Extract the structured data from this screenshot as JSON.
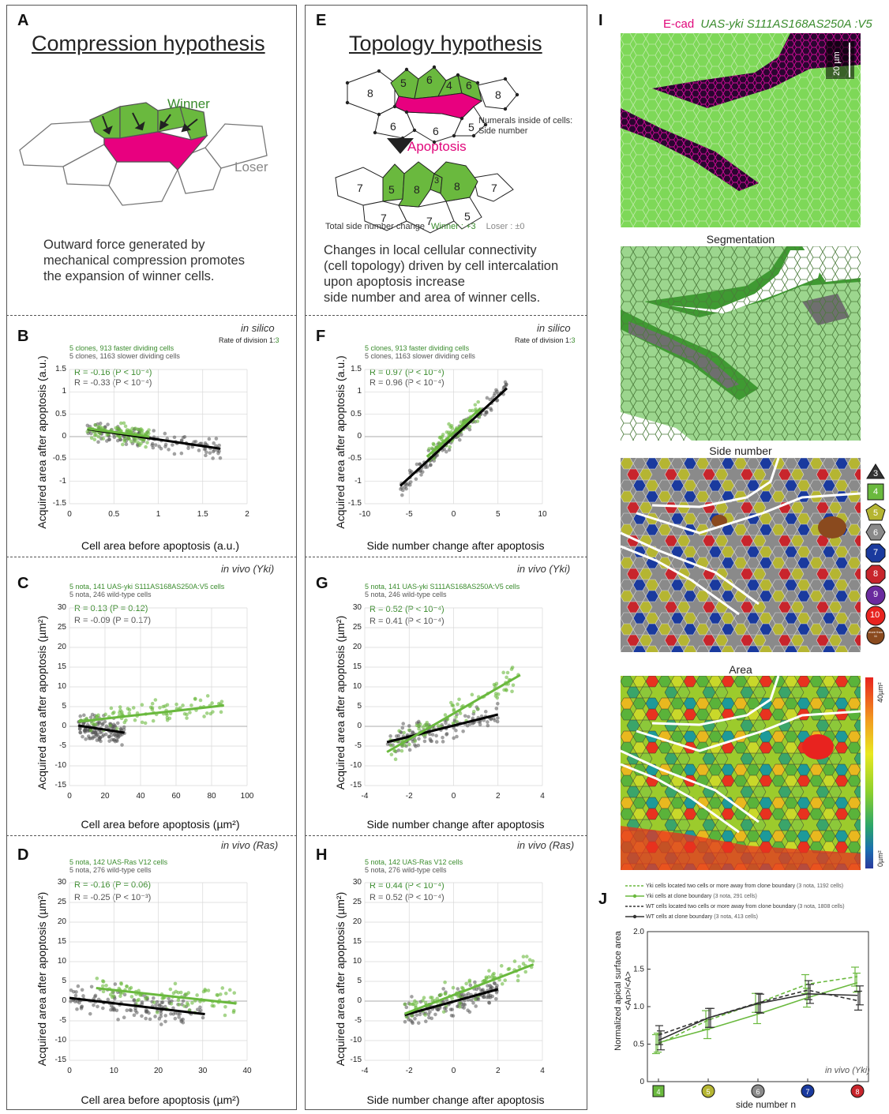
{
  "letters": [
    "A",
    "B",
    "C",
    "D",
    "E",
    "F",
    "G",
    "H",
    "I",
    "J"
  ],
  "panelA": {
    "title": "Compression hypothesis",
    "winner": "Winner",
    "loser": "Loser",
    "caption": [
      "Outward force generated by",
      "mechanical compression promotes",
      "the expansion of winner cells."
    ]
  },
  "panelE": {
    "title": "Topology hypothesis",
    "top_sides": [
      "5",
      "6",
      "4",
      "6"
    ],
    "top_others": [
      "8",
      "8",
      "6",
      "6",
      "5"
    ],
    "numerals_note": [
      "Numerals inside of cells:",
      "Side number"
    ],
    "apoptosis": "Apoptosis",
    "bottom_sides": [
      "5",
      "8",
      "3",
      "8"
    ],
    "bottom_others": [
      "7",
      "7",
      "7",
      "7",
      "5"
    ],
    "total_label": "Total side number change",
    "winner_change": "Winner : +3",
    "loser_change": "Loser : ±0",
    "caption": [
      "Changes in local cellular connectivity",
      "(cell topology) driven by cell intercalation",
      "upon apoptosis increase",
      "side number and area of winner cells."
    ]
  },
  "colors": {
    "winner": "#6ab93e",
    "dead": "#e8007f",
    "loser_line": "#777777",
    "grey_dot": "#555555",
    "black_line": "#000000"
  },
  "scatter": {
    "B": {
      "context": "in silico",
      "rate": "Rate of division 1:",
      "rate_ratio": "3",
      "legend1": "5 clones, 913 faster dividing cells",
      "legend2": "5 clones, 1163 slower dividing cells",
      "r1": "R = -0.16 (P < 10⁻⁴)",
      "r2": "R = -0.33 (P < 10⁻⁴)",
      "ylabel": "Acquired area after apoptosis (a.u.)",
      "xlabel": "Cell area before apoptosis (a.u.)",
      "xticks": [
        "0",
        "0.5",
        "1",
        "1.5",
        "2"
      ],
      "yticks": [
        "1.5",
        "1",
        "0.5",
        "0",
        "-0.5",
        "-1",
        "-1.5"
      ]
    },
    "C": {
      "context": "in vivo (Yki)",
      "legend1": "5 nota, 141 UAS-yki S111AS168AS250A:V5 cells",
      "legend2": "5 nota, 246 wild-type cells",
      "r1": "R = 0.13 (P = 0.12)",
      "r2": "R = -0.09 (P = 0.17)",
      "ylabel": "Acquired area after apoptosis (µm²)",
      "xlabel": "Cell area before apoptosis (µm²)",
      "xticks": [
        "0",
        "20",
        "40",
        "60",
        "80",
        "100"
      ],
      "yticks": [
        "30",
        "25",
        "20",
        "15",
        "10",
        "5",
        "0",
        "-5",
        "-10",
        "-15"
      ]
    },
    "D": {
      "context": "in vivo (Ras)",
      "legend1": "5 nota, 142 UAS-Ras V12 cells",
      "legend2": "5 nota, 276 wild-type cells",
      "r1": "R = -0.16 (P = 0.06)",
      "r2": "R = -0.25 (P < 10⁻³)",
      "ylabel": "Acquired area after apoptosis (µm²)",
      "xlabel": "Cell area before apoptosis (µm²)",
      "xticks": [
        "0",
        "10",
        "20",
        "30",
        "40"
      ],
      "yticks": [
        "30",
        "25",
        "20",
        "15",
        "10",
        "5",
        "0",
        "-5",
        "-10",
        "-15"
      ]
    },
    "F": {
      "context": "in silico",
      "rate": "Rate of division 1:",
      "rate_ratio": "3",
      "legend1": "5 clones, 913 faster dividing cells",
      "legend2": "5 clones, 1163 slower dividing cells",
      "r1": "R = 0.97 (P < 10⁻⁴)",
      "r2": "R = 0.96 (P < 10⁻⁴)",
      "ylabel": "Acquired area after apoptosis (a.u.)",
      "xlabel": "Side number change after apoptosis",
      "xticks": [
        "-10",
        "-5",
        "0",
        "5",
        "10"
      ],
      "yticks": [
        "1.5",
        "1",
        "0.5",
        "0",
        "-0.5",
        "-1",
        "-1.5"
      ]
    },
    "G": {
      "context": "in vivo (Yki)",
      "legend1": "5 nota, 141 UAS-yki S111AS168AS250A:V5 cells",
      "legend2": "5 nota, 246 wild-type cells",
      "r1": "R = 0.52 (P < 10⁻⁴)",
      "r2": "R = 0.41 (P < 10⁻⁴)",
      "ylabel": "Acquired area after apoptosis (µm²)",
      "xlabel": "Side number change after apoptosis",
      "xticks": [
        "-4",
        "-2",
        "0",
        "2",
        "4"
      ],
      "yticks": [
        "30",
        "25",
        "20",
        "15",
        "10",
        "5",
        "0",
        "-5",
        "-10",
        "-15"
      ]
    },
    "H": {
      "context": "in vivo (Ras)",
      "legend1": "5 nota, 142 UAS-Ras V12 cells",
      "legend2": "5 nota, 276 wild-type cells",
      "r1": "R = 0.44 (P < 10⁻⁴)",
      "r2": "R = 0.52 (P < 10⁻⁴)",
      "ylabel": "Acquired area after apoptosis (µm²)",
      "xlabel": "Side number change after apoptosis",
      "xticks": [
        "-4",
        "-2",
        "0",
        "2",
        "4"
      ],
      "yticks": [
        "30",
        "25",
        "20",
        "15",
        "10",
        "5",
        "0",
        "-5",
        "-10",
        "-15"
      ]
    }
  },
  "panelI": {
    "title_ecad": "E-cad",
    "title_uas": "UAS-yki S111AS168AS250A :V5",
    "scale": "20 µm",
    "segmentation": "Segmentation",
    "side_number": "Side number",
    "area": "Area",
    "legend": [
      "3",
      "4",
      "5",
      "6",
      "7",
      "8",
      "9",
      "10",
      "more than 11"
    ],
    "colorbar_max": "40µm²",
    "colorbar_min": "0µm²"
  },
  "panelJ": {
    "legend": [
      {
        "text": "Yki cells located two cells or more away from clone boundary",
        "detail": "(3 nota, 1192 cells)"
      },
      {
        "text": "Yki cells at clone boundary",
        "detail": "(3 nota, 291 cells)"
      },
      {
        "text": "WT cells located two cells or more away from clone boundary",
        "detail": "(3 nota, 1808 cells)"
      },
      {
        "text": "WT cells at clone boundary",
        "detail": "(3 nota, 413 cells)"
      }
    ],
    "ylabel": "Normalized apical surface area",
    "ylabel2": "<An>/<A>",
    "xlabel": "side number n",
    "context": "in vivo (Yki)",
    "yticks": [
      "2.0",
      "1.5",
      "1.0",
      "0.5",
      "0"
    ],
    "xticks": [
      "4",
      "5",
      "6",
      "7",
      "8"
    ]
  },
  "chart_data": [
    {
      "type": "scatter",
      "panel": "B",
      "xlim": [
        0,
        2
      ],
      "ylim": [
        -1.5,
        1.5
      ],
      "fits": [
        {
          "series": "faster",
          "x": [
            0.2,
            0.9
          ],
          "y": [
            0.18,
            0.0
          ]
        },
        {
          "series": "slower",
          "x": [
            0.2,
            1.7
          ],
          "y": [
            0.17,
            -0.27
          ]
        }
      ]
    },
    {
      "type": "scatter",
      "panel": "C",
      "xlim": [
        0,
        100
      ],
      "ylim": [
        -15,
        30
      ],
      "fits": [
        {
          "series": "yki",
          "x": [
            5,
            87
          ],
          "y": [
            1.2,
            5.3
          ]
        },
        {
          "series": "wt",
          "x": [
            5,
            31
          ],
          "y": [
            0.2,
            -1.6
          ]
        }
      ]
    },
    {
      "type": "scatter",
      "panel": "D",
      "xlim": [
        0,
        40
      ],
      "ylim": [
        -15,
        30
      ],
      "fits": [
        {
          "series": "ras",
          "x": [
            6,
            37.5
          ],
          "y": [
            3.3,
            -0.6
          ]
        },
        {
          "series": "wt",
          "x": [
            0,
            30.5
          ],
          "y": [
            0.8,
            -3.3
          ]
        }
      ]
    },
    {
      "type": "scatter",
      "panel": "F",
      "xlim": [
        -10,
        10
      ],
      "ylim": [
        -1.5,
        1.5
      ],
      "fits": [
        {
          "series": "faster",
          "x": [
            -3,
            3
          ],
          "y": [
            -0.45,
            0.62
          ]
        },
        {
          "series": "slower",
          "x": [
            -6,
            6
          ],
          "y": [
            -1.1,
            1.08
          ]
        }
      ]
    },
    {
      "type": "scatter",
      "panel": "G",
      "xlim": [
        -4,
        4
      ],
      "ylim": [
        -15,
        30
      ],
      "fits": [
        {
          "series": "yki",
          "x": [
            -3,
            3
          ],
          "y": [
            -6.5,
            13
          ]
        },
        {
          "series": "wt",
          "x": [
            -3,
            2
          ],
          "y": [
            -4,
            3
          ]
        }
      ]
    },
    {
      "type": "scatter",
      "panel": "H",
      "xlim": [
        -4,
        4
      ],
      "ylim": [
        -15,
        30
      ],
      "fits": [
        {
          "series": "ras",
          "x": [
            -2.2,
            3.6
          ],
          "y": [
            -3.2,
            9.3
          ]
        },
        {
          "series": "wt",
          "x": [
            -2.2,
            2
          ],
          "y": [
            -3.5,
            3
          ]
        }
      ]
    },
    {
      "type": "line",
      "panel": "J",
      "x": [
        4,
        5,
        6,
        7,
        8
      ],
      "ylim": [
        0,
        2.0
      ],
      "series": [
        {
          "name": "Yki cells located two cells or more away from clone boundary",
          "values": [
            0.5,
            0.82,
            1.05,
            1.3,
            1.4
          ]
        },
        {
          "name": "Yki cells at clone boundary",
          "values": [
            0.52,
            0.7,
            0.9,
            1.12,
            1.32
          ]
        },
        {
          "name": "WT cells located two cells or more away from clone boundary",
          "values": [
            0.62,
            0.85,
            1.05,
            1.22,
            1.08
          ]
        },
        {
          "name": "WT cells at clone boundary",
          "values": [
            0.55,
            0.85,
            1.04,
            1.17,
            1.15
          ]
        }
      ]
    }
  ]
}
